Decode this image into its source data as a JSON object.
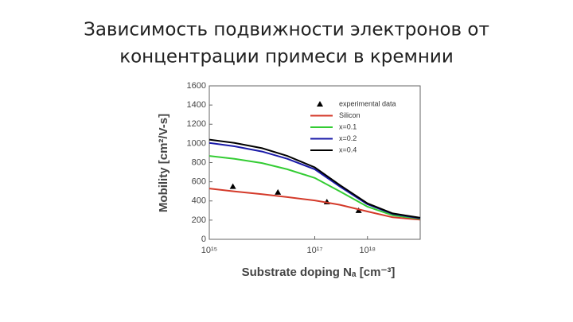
{
  "chart_data": {
    "type": "line",
    "title": "Зависимость подвижности электронов от",
    "subtitle": "концентрации примеси в кремнии",
    "y_label": "Mobility  [cm²/V-s]",
    "x_label": "Substrate doping Nₐ  [cm⁻³]",
    "x_log": true,
    "xlim": [
      1000000000000000.0,
      1e+19
    ],
    "xticks": [
      {
        "value": 1000000000000000.0,
        "label": "10¹⁵"
      },
      {
        "value": 1e+17,
        "label": "10¹⁷"
      },
      {
        "value": 1e+18,
        "label": "10¹⁸"
      }
    ],
    "ylim": [
      0,
      1600
    ],
    "yticks": [
      0,
      200,
      400,
      600,
      800,
      1000,
      1200,
      1400,
      1600
    ],
    "series": [
      {
        "name": "experimental data",
        "kind": "scatter",
        "color": "#000000",
        "x": [
          2800000000000000.0,
          2e+16,
          1.7e+17,
          6.8e+17
        ],
        "values": [
          550,
          490,
          390,
          300
        ]
      },
      {
        "name": "Silicon",
        "kind": "line",
        "color": "#d43a2a",
        "x": [
          1000000000000000.0,
          3000000000000000.0,
          1e+16,
          3e+16,
          1e+17,
          3e+17,
          1e+18,
          3e+18,
          1e+19
        ],
        "values": [
          530,
          500,
          470,
          440,
          405,
          360,
          290,
          230,
          205
        ]
      },
      {
        "name": "x=0.1",
        "kind": "line",
        "color": "#33cc33",
        "x": [
          1000000000000000.0,
          3000000000000000.0,
          1e+16,
          3e+16,
          1e+17,
          3e+17,
          1e+18,
          3e+18,
          1e+19
        ],
        "values": [
          870,
          840,
          795,
          730,
          640,
          500,
          340,
          250,
          215
        ]
      },
      {
        "name": "x=0.2",
        "kind": "line",
        "color": "#1a1aa8",
        "x": [
          1000000000000000.0,
          3000000000000000.0,
          1e+16,
          3e+16,
          1e+17,
          3e+17,
          1e+18,
          3e+18,
          1e+19
        ],
        "values": [
          1005,
          970,
          915,
          840,
          730,
          550,
          365,
          265,
          220
        ]
      },
      {
        "name": "x=0.4",
        "kind": "line",
        "color": "#000000",
        "x": [
          1000000000000000.0,
          3000000000000000.0,
          1e+16,
          3e+16,
          1e+17,
          3e+17,
          1e+18,
          3e+18,
          1e+19
        ],
        "values": [
          1040,
          1005,
          950,
          870,
          750,
          565,
          375,
          270,
          225
        ]
      }
    ],
    "legend": "upper right"
  }
}
